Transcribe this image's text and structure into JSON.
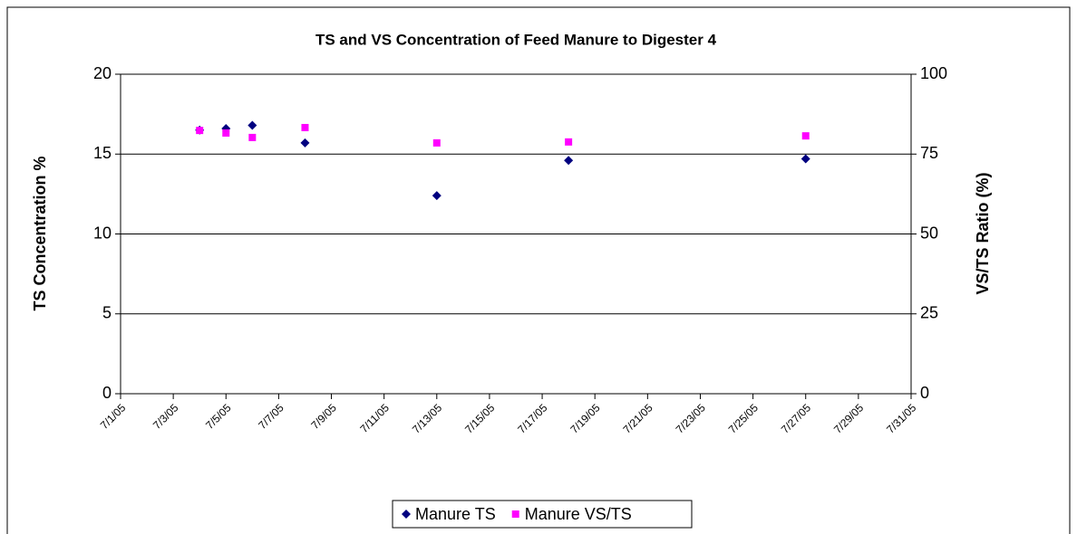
{
  "chart_data": {
    "type": "scatter",
    "title": "TS and VS Concentration of Feed Manure to Digester 4",
    "y_label": "TS Concentration %",
    "y2_label": "VS/TS Ratio (%)",
    "x": [
      "2005-07-04",
      "2005-07-05",
      "2005-07-06",
      "2005-07-08",
      "2005-07-13",
      "2005-07-18",
      "2005-07-27"
    ],
    "series": [
      {
        "name": "Manure TS",
        "color": "#000080",
        "marker": "diamond",
        "values": [
          16.5,
          16.6,
          16.8,
          15.7,
          12.4,
          14.6,
          14.7
        ]
      },
      {
        "name": "Manure VS/TS",
        "color": "#ff00ff",
        "marker": "square",
        "axis": "y2",
        "values": [
          82.4,
          81.6,
          80.2,
          83.3,
          78.5,
          78.8,
          80.7
        ]
      }
    ],
    "xlim": [
      "2005-07-01",
      "2005-07-31"
    ],
    "xticks": [
      {
        "value": "2005-07-01",
        "label": "7/1/05"
      },
      {
        "value": "2005-07-03",
        "label": "7/3/05"
      },
      {
        "value": "2005-07-05",
        "label": "7/5/05"
      },
      {
        "value": "2005-07-07",
        "label": "7/7/05"
      },
      {
        "value": "2005-07-09",
        "label": "7/9/05"
      },
      {
        "value": "2005-07-11",
        "label": "7/11/05"
      },
      {
        "value": "2005-07-13",
        "label": "7/13/05"
      },
      {
        "value": "2005-07-15",
        "label": "7/15/05"
      },
      {
        "value": "2005-07-17",
        "label": "7/17/05"
      },
      {
        "value": "2005-07-19",
        "label": "7/19/05"
      },
      {
        "value": "2005-07-21",
        "label": "7/21/05"
      },
      {
        "value": "2005-07-23",
        "label": "7/23/05"
      },
      {
        "value": "2005-07-25",
        "label": "7/25/05"
      },
      {
        "value": "2005-07-27",
        "label": "7/27/05"
      },
      {
        "value": "2005-07-29",
        "label": "7/29/05"
      },
      {
        "value": "2005-07-31",
        "label": "7/31/05"
      }
    ],
    "ylim": [
      0,
      20
    ],
    "yticks": [
      0,
      5,
      10,
      15,
      20
    ],
    "y2lim": [
      0,
      100
    ],
    "y2ticks": [
      0,
      25,
      50,
      75,
      100
    ],
    "grid": true,
    "legend": "bottom"
  }
}
